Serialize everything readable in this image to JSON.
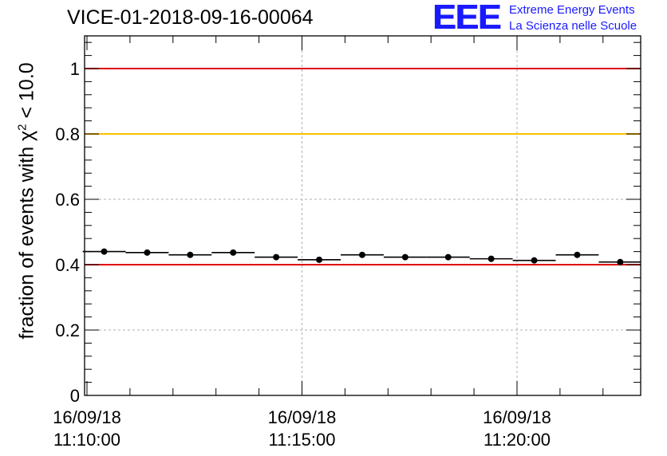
{
  "title": "VICE-01-2018-09-16-00064",
  "logo": {
    "mark": "EEE",
    "line1": "Extreme Energy Events",
    "line2": "La Scienza nelle Scuole"
  },
  "chart_data": {
    "type": "scatter",
    "title": "VICE-01-2018-09-16-00064",
    "ylabel": "fraction of events with χ² < 10.0",
    "ylabel_parts": {
      "prefix": "fraction of events with ",
      "symbol": "χ",
      "power": "2",
      "suffix": " < 10.0"
    },
    "xlabel": "",
    "ylim": [
      0,
      1.1
    ],
    "yticks": [
      "0",
      "0.2",
      "0.4",
      "0.6",
      "0.8",
      "1"
    ],
    "yticks_values": [
      0,
      0.2,
      0.4,
      0.6,
      0.8,
      1.0
    ],
    "xlim_minutes": [
      0,
      12.9
    ],
    "xticks": [
      {
        "minute": 0,
        "date": "16/09/18",
        "time": "11:10:00"
      },
      {
        "minute": 5,
        "date": "16/09/18",
        "time": "11:15:00"
      },
      {
        "minute": 10,
        "date": "16/09/18",
        "time": "11:20:00"
      }
    ],
    "grid": true,
    "reference_lines": [
      {
        "y": 1.0,
        "color": "#e00000"
      },
      {
        "y": 0.8,
        "color": "#ffc000"
      },
      {
        "y": 0.4,
        "color": "#e00000"
      }
    ],
    "series": [
      {
        "marker_color": "#000000",
        "bin_width_minutes": 1.0,
        "x_minutes": [
          0.4,
          1.4,
          2.4,
          3.4,
          4.4,
          5.4,
          6.4,
          7.4,
          8.4,
          9.4,
          10.4,
          11.4,
          12.4
        ],
        "values": [
          0.44,
          0.437,
          0.43,
          0.437,
          0.423,
          0.415,
          0.43,
          0.423,
          0.423,
          0.418,
          0.413,
          0.43,
          0.408
        ]
      }
    ],
    "x_units": "minutes after 16/09/18 11:10:00"
  }
}
